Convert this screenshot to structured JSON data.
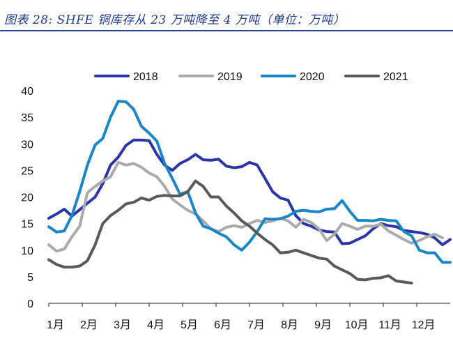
{
  "header": {
    "title": "图表 28: SHFE 铜库存从 23 万吨降至 4 万吨（单位：万吨）"
  },
  "chart_data": {
    "type": "line",
    "title": "图表 28: SHFE 铜库存从 23 万吨降至 4 万吨（单位：万吨）",
    "xlabel": "",
    "ylabel": "",
    "x_ticks": [
      "1月",
      "2月",
      "3月",
      "4月",
      "5月",
      "6月",
      "7月",
      "8月",
      "9月",
      "10月",
      "11月",
      "12月"
    ],
    "ylim": [
      0,
      40
    ],
    "y_ticks": [
      0,
      5,
      10,
      15,
      20,
      25,
      30,
      35,
      40
    ],
    "grid": false,
    "legend_position": "top",
    "x_unit": "week index (0 = 1月 start, 52 = end of 12月)",
    "series": [
      {
        "name": "2018",
        "color": "#2b35a8",
        "x": [
          0,
          1,
          2,
          3,
          4,
          5,
          6,
          7,
          8,
          9,
          10,
          11,
          12,
          13,
          14,
          15,
          16,
          17,
          18,
          19,
          20,
          21,
          22,
          23,
          24,
          25,
          26,
          27,
          28,
          29,
          30,
          31,
          32,
          33,
          34,
          35,
          36,
          37,
          38,
          39,
          40,
          41,
          42,
          43,
          44,
          45,
          46,
          47,
          48,
          49,
          50,
          51,
          52
        ],
        "values": [
          16,
          16.8,
          17.7,
          16.4,
          17.6,
          18.8,
          20,
          22.5,
          26,
          27.5,
          29.7,
          30.7,
          30.7,
          30.6,
          28,
          26,
          25,
          26.3,
          27,
          28,
          27,
          26.9,
          27.1,
          25.8,
          25.5,
          25.7,
          26.5,
          26,
          23.5,
          21,
          19.8,
          19.4,
          16.5,
          15,
          14.5,
          13.8,
          13.5,
          13.4,
          11.2,
          11.3,
          12,
          12.7,
          14,
          15,
          14.6,
          14.4,
          13.7,
          13.5,
          13.3,
          13,
          12.3,
          11,
          12
        ]
      },
      {
        "name": "2019",
        "color": "#ababab",
        "x": [
          0,
          1,
          2,
          3,
          4,
          5,
          6,
          7,
          8,
          9,
          10,
          11,
          12,
          13,
          14,
          15,
          16,
          17,
          18,
          19,
          20,
          21,
          22,
          23,
          24,
          25,
          26,
          27,
          28,
          29,
          30,
          31,
          32,
          33,
          34,
          35,
          36,
          37,
          38,
          39,
          40,
          41,
          42,
          43,
          44,
          45,
          46,
          47,
          48,
          49,
          50,
          51
        ],
        "values": [
          11,
          9.8,
          10.2,
          12.5,
          14.5,
          20.8,
          22,
          23,
          23.8,
          26.5,
          26,
          26.3,
          25.6,
          24.5,
          23.8,
          22,
          19.6,
          18.5,
          17.5,
          16.8,
          15.5,
          14,
          13.5,
          14.3,
          14.6,
          14.3,
          15,
          15.6,
          15.2,
          15.5,
          16,
          15.5,
          14.3,
          15.8,
          15.2,
          14,
          11.8,
          13,
          15,
          14.5,
          13.9,
          14.5,
          14.5,
          14.9,
          13.6,
          12.8,
          12,
          11.3,
          11.8,
          12.5,
          13,
          12.3
        ]
      },
      {
        "name": "2020",
        "color": "#1a86c9",
        "x": [
          0,
          1,
          2,
          3,
          4,
          5,
          6,
          7,
          8,
          9,
          10,
          11,
          12,
          13,
          14,
          15,
          16,
          17,
          18,
          19,
          20,
          21,
          22,
          23,
          24,
          25,
          26,
          27,
          28,
          29,
          30,
          31,
          32,
          33,
          34,
          35,
          36,
          37,
          38,
          39,
          40,
          41,
          42,
          43,
          44,
          45,
          46,
          47,
          48,
          49,
          50,
          51,
          52
        ],
        "values": [
          14.4,
          13.4,
          13.6,
          16.5,
          21,
          26,
          29.8,
          31,
          35,
          38,
          37.9,
          36.5,
          33.3,
          32,
          30.5,
          26.3,
          23.5,
          20.5,
          21,
          17,
          14.5,
          14,
          13.2,
          12.5,
          11,
          10,
          11.5,
          13.5,
          15.9,
          15.8,
          15.9,
          16.4,
          17.3,
          17.5,
          17.3,
          17.2,
          17.7,
          17.8,
          19.3,
          17.3,
          15.6,
          15.6,
          15.5,
          15.8,
          15.6,
          15.5,
          13.5,
          12.7,
          10,
          9.5,
          9.5,
          7.7,
          7.7
        ]
      },
      {
        "name": "2021",
        "color": "#595959",
        "x": [
          0,
          1,
          2,
          3,
          4,
          5,
          6,
          7,
          8,
          9,
          10,
          11,
          12,
          13,
          14,
          15,
          16,
          17,
          18,
          19,
          20,
          21,
          22,
          23,
          24,
          25,
          26,
          27,
          28,
          29,
          30,
          31,
          32,
          33,
          34,
          35,
          36,
          37,
          38,
          39,
          40,
          41,
          42,
          43,
          44,
          45,
          46,
          47
        ],
        "values": [
          8.2,
          7.3,
          6.8,
          6.8,
          7,
          8,
          11,
          15,
          16.5,
          17.5,
          18.7,
          19,
          19.8,
          19.4,
          20.1,
          20.3,
          20.2,
          20.2,
          21,
          23,
          22,
          20,
          20,
          18.3,
          17,
          15.5,
          14.5,
          13.2,
          12,
          11,
          9.5,
          9.6,
          10,
          9.5,
          9,
          8.5,
          8.3,
          7,
          6.3,
          5.6,
          4.5,
          4.4,
          4.7,
          4.8,
          5.2,
          4.2,
          4,
          3.8
        ]
      }
    ]
  }
}
